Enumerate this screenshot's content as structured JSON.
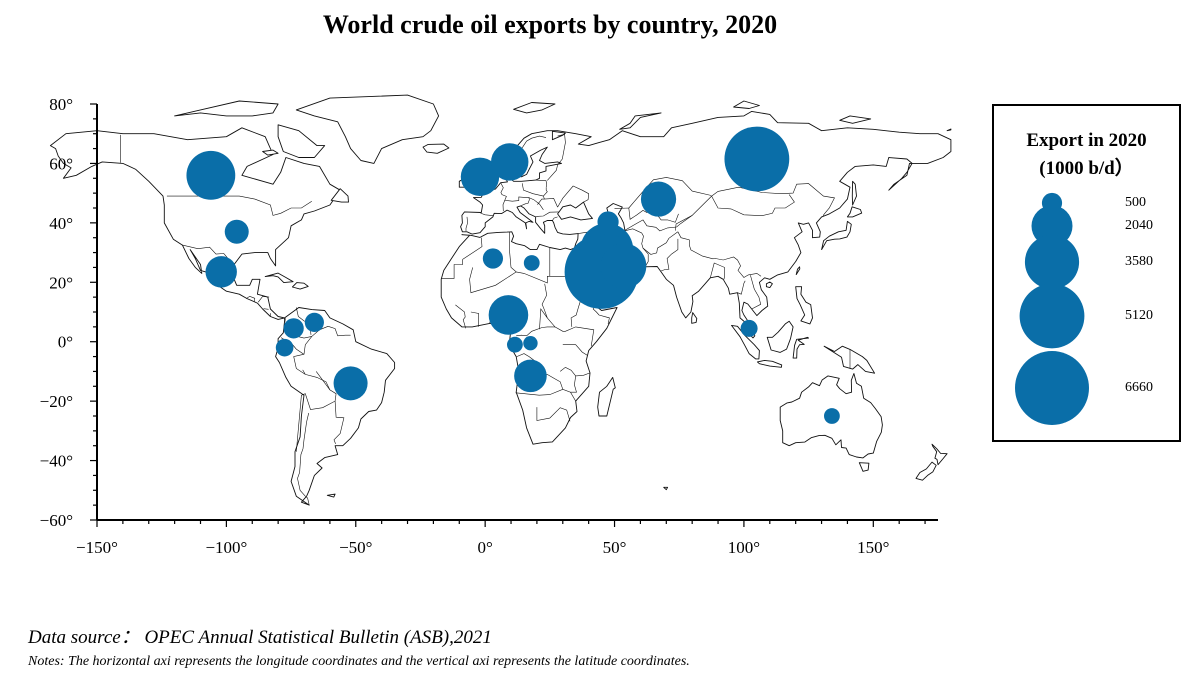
{
  "title": "World crude oil exports by country, 2020",
  "axes": {
    "x_ticks": [
      "−150°",
      "−100°",
      "−50°",
      "0°",
      "50°",
      "100°",
      "150°"
    ],
    "y_ticks": [
      "80°",
      "60°",
      "40°",
      "20°",
      "0°",
      "−20°",
      "−40°",
      "−60°"
    ],
    "x_values": [
      -150,
      -100,
      -50,
      0,
      50,
      100,
      150
    ],
    "y_values": [
      80,
      60,
      40,
      20,
      0,
      -20,
      -40,
      -60
    ],
    "xlim": [
      -150,
      175
    ],
    "ylim": [
      -60,
      80
    ]
  },
  "legend": {
    "title_line1": "Export in 2020",
    "title_line2": "(1000 b/d）",
    "items": [
      {
        "label": "500",
        "value": 500
      },
      {
        "label": "2040",
        "value": 2040
      },
      {
        "label": "3580",
        "value": 3580
      },
      {
        "label": "5120",
        "value": 5120
      },
      {
        "label": "6660",
        "value": 6660
      }
    ]
  },
  "colors": {
    "bubble": "#0a6ea8",
    "land_stroke": "#111111",
    "background": "#ffffff"
  },
  "chart_data": {
    "type": "scatter",
    "points": [
      {
        "lon": -106,
        "lat": 56,
        "value": 2900
      },
      {
        "lon": -96,
        "lat": 37,
        "value": 700
      },
      {
        "lon": -102,
        "lat": 23.5,
        "value": 1200
      },
      {
        "lon": -74,
        "lat": 4.5,
        "value": 500
      },
      {
        "lon": -66,
        "lat": 6.5,
        "value": 450
      },
      {
        "lon": -77.5,
        "lat": -2,
        "value": 380
      },
      {
        "lon": -52,
        "lat": -14,
        "value": 1400
      },
      {
        "lon": -2,
        "lat": 55.5,
        "value": 1800
      },
      {
        "lon": 9.5,
        "lat": 60.5,
        "value": 1700
      },
      {
        "lon": 3,
        "lat": 28,
        "value": 500
      },
      {
        "lon": 18,
        "lat": 26.5,
        "value": 300
      },
      {
        "lon": 9,
        "lat": 9,
        "value": 1900
      },
      {
        "lon": 17.5,
        "lat": -11.5,
        "value": 1300
      },
      {
        "lon": 11.5,
        "lat": -1,
        "value": 300
      },
      {
        "lon": 17.5,
        "lat": -0.5,
        "value": 250
      },
      {
        "lon": 47,
        "lat": 31,
        "value": 3400
      },
      {
        "lon": 45,
        "lat": 23.5,
        "value": 6660
      },
      {
        "lon": 48,
        "lat": 29.5,
        "value": 1900
      },
      {
        "lon": 53.5,
        "lat": 25.5,
        "value": 2500
      },
      {
        "lon": 47.5,
        "lat": 40.3,
        "value": 550
      },
      {
        "lon": 67,
        "lat": 48,
        "value": 1500
      },
      {
        "lon": 105,
        "lat": 61.5,
        "value": 5100
      },
      {
        "lon": 102,
        "lat": 4.5,
        "value": 350
      },
      {
        "lon": 134,
        "lat": -25,
        "value": 300
      }
    ]
  },
  "source": {
    "label": "Data source：",
    "text": "OPEC Annual Statistical Bulletin (ASB),2021"
  },
  "notes": "Notes: The horizontal axi represents the longitude coordinates and the vertical axi represents the latitude coordinates."
}
